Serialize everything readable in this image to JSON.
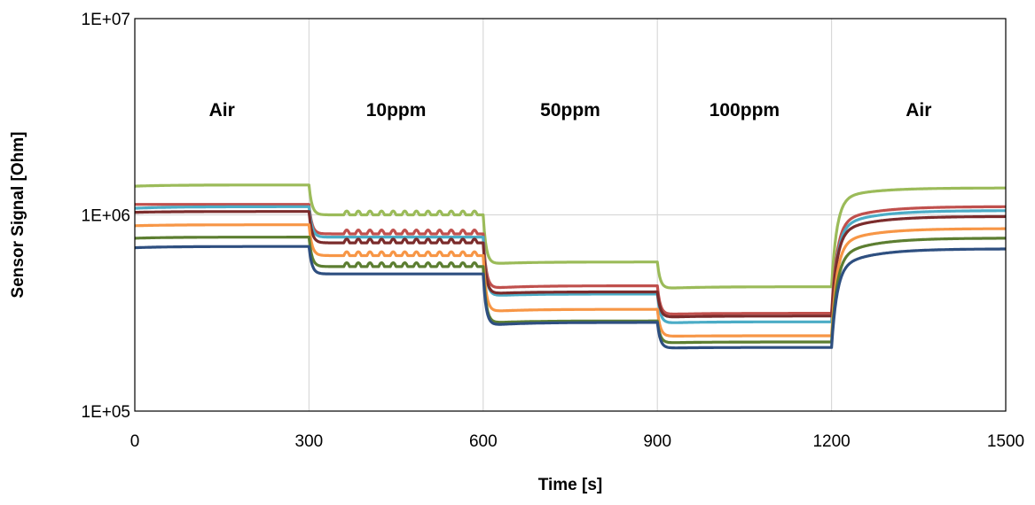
{
  "chart_data": {
    "type": "line",
    "title": "",
    "xlabel": "Time [s]",
    "ylabel": "Sensor Signal [Ohm]",
    "xlim": [
      0,
      1500
    ],
    "ylim": [
      100000,
      10000000
    ],
    "yscale": "log",
    "grid": "vertical",
    "x_ticks": [
      0,
      300,
      600,
      900,
      1200,
      1500
    ],
    "x_tick_labels": [
      "0",
      "300",
      "600",
      "900",
      "1200",
      "1500"
    ],
    "y_ticks": [
      100000,
      1000000,
      10000000
    ],
    "y_tick_labels": [
      "1E+05",
      "1E+06",
      "1E+07"
    ],
    "phases": [
      {
        "label": "Air",
        "start": 0,
        "end": 300
      },
      {
        "label": "10ppm",
        "start": 300,
        "end": 600
      },
      {
        "label": "50ppm",
        "start": 600,
        "end": 900
      },
      {
        "label": "100ppm",
        "start": 900,
        "end": 1200
      },
      {
        "label": "Air",
        "start": 1200,
        "end": 1500
      }
    ],
    "series": [
      {
        "color": "#9bbb59",
        "osc": true,
        "values": [
          1400000,
          1420000,
          1000000,
          1000000,
          560000,
          575000,
          420000,
          430000,
          1200000,
          1370000
        ]
      },
      {
        "color": "#c0504d",
        "osc": true,
        "values": [
          1130000,
          1130000,
          800000,
          800000,
          420000,
          435000,
          310000,
          315000,
          900000,
          1100000
        ]
      },
      {
        "color": "#4bacc6",
        "osc": false,
        "values": [
          1080000,
          1100000,
          770000,
          770000,
          385000,
          395000,
          280000,
          285000,
          850000,
          1050000
        ]
      },
      {
        "color": "#7b2c2c",
        "osc": true,
        "values": [
          1030000,
          1040000,
          720000,
          720000,
          395000,
          405000,
          300000,
          305000,
          800000,
          980000
        ]
      },
      {
        "color": "#f79646",
        "osc": true,
        "values": [
          880000,
          890000,
          620000,
          620000,
          320000,
          330000,
          240000,
          242000,
          700000,
          850000
        ]
      },
      {
        "color": "#5c7e31",
        "osc": true,
        "values": [
          760000,
          770000,
          545000,
          545000,
          280000,
          288000,
          222000,
          225000,
          600000,
          760000
        ]
      },
      {
        "color": "#2e4f80",
        "osc": false,
        "values": [
          680000,
          690000,
          500000,
          500000,
          272000,
          283000,
          209000,
          211000,
          530000,
          670000
        ]
      }
    ]
  }
}
